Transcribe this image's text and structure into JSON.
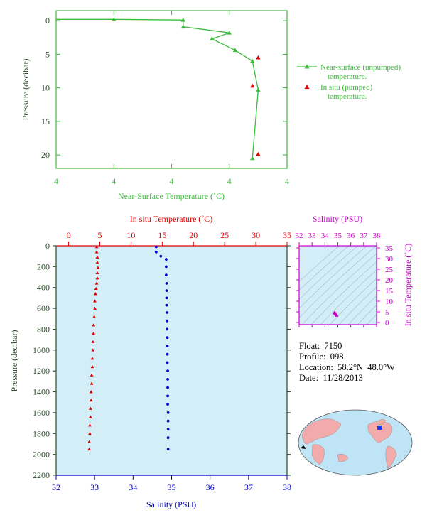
{
  "colors": {
    "green": "#3dbb3d",
    "red": "#e00000",
    "blue": "#0000cc",
    "magenta": "#cc00cc",
    "pale_blue": "#d4eef8",
    "axis_dark": "#2a4a2a"
  },
  "float_info": {
    "float": "Float:  7150",
    "profile": "Profile:  098",
    "location": "Location:  58.2°N  48.0°W",
    "date": "Date:  11/28/2013"
  },
  "chart_data": [
    {
      "type": "line",
      "title": "",
      "xlabel": "Near-Surface Temperature (˚C)",
      "ylabel": "Pressure (decibar)",
      "x_tick_labels": [
        "4",
        "4",
        "4",
        "4",
        "4"
      ],
      "x_ticks": [
        3.6,
        3.8,
        4.0,
        4.2,
        4.4
      ],
      "xlim": [
        3.6,
        4.4
      ],
      "y_ticks": [
        0,
        5,
        10,
        15,
        20
      ],
      "ylim": [
        22,
        -1.5
      ],
      "legend_position": "right",
      "series": [
        {
          "name": "Near-surface (unpumped) temperature.",
          "color": "#3dbb3d",
          "marker": "triangle",
          "x": [
            3.6,
            3.8,
            4.04,
            4.04,
            4.2,
            4.14,
            4.22,
            4.28,
            4.3,
            4.28
          ],
          "y": [
            -0.2,
            -0.2,
            -0.1,
            0.9,
            1.8,
            2.7,
            4.4,
            6.0,
            10.3,
            20.5
          ]
        },
        {
          "name": "In situ (pumped) temperature.",
          "color": "#e00000",
          "marker": "triangle",
          "x": [
            4.3,
            4.28,
            4.3
          ],
          "y": [
            5.5,
            9.7,
            19.9
          ]
        }
      ]
    },
    {
      "type": "scatter",
      "ylabel": "Pressure (decibar)",
      "ylim": [
        2200,
        0
      ],
      "y_ticks": [
        0,
        200,
        400,
        600,
        800,
        1000,
        1200,
        1400,
        1600,
        1800,
        2000,
        2200
      ],
      "top_axis": {
        "label": "In situ Temperature (˚C)",
        "ticks": [
          0,
          5,
          10,
          15,
          20,
          25,
          30,
          35
        ],
        "lim": [
          -2,
          35
        ]
      },
      "bottom_axis": {
        "label": "Salinity (PSU)",
        "ticks": [
          32,
          33,
          34,
          35,
          36,
          37,
          38
        ],
        "lim": [
          32,
          38
        ]
      },
      "series": [
        {
          "name": "In situ Temperature",
          "color": "#e00000",
          "axis": "top",
          "marker": "triangle",
          "x": [
            4.5,
            4.5,
            4.6,
            4.6,
            4.7,
            4.6,
            4.6,
            4.5,
            4.4,
            4.3,
            4.2,
            4.2,
            4.1,
            4.0,
            4.0,
            3.9,
            3.9,
            3.8,
            3.8,
            3.7,
            3.7,
            3.6,
            3.6,
            3.5,
            3.5,
            3.4,
            3.4,
            3.3,
            3.3
          ],
          "y": [
            10,
            60,
            110,
            160,
            210,
            260,
            310,
            360,
            410,
            460,
            530,
            600,
            680,
            760,
            840,
            920,
            1000,
            1080,
            1160,
            1240,
            1320,
            1400,
            1480,
            1560,
            1640,
            1720,
            1800,
            1880,
            1950
          ]
        },
        {
          "name": "Salinity",
          "color": "#0000cc",
          "axis": "bottom",
          "marker": "circle",
          "x": [
            34.6,
            34.6,
            34.72,
            34.86,
            34.86,
            34.86,
            34.87,
            34.87,
            34.87,
            34.87,
            34.88,
            34.88,
            34.88,
            34.89,
            34.89,
            34.89,
            34.89,
            34.9,
            34.9,
            34.9,
            34.9,
            34.9,
            34.91,
            34.91,
            34.91,
            34.91,
            34.91
          ],
          "y": [
            10,
            60,
            100,
            130,
            200,
            280,
            360,
            430,
            500,
            570,
            640,
            720,
            800,
            880,
            960,
            1040,
            1120,
            1200,
            1280,
            1360,
            1440,
            1520,
            1600,
            1680,
            1760,
            1840,
            1950
          ]
        }
      ]
    },
    {
      "type": "scatter",
      "title": "Salinity (PSU)",
      "ylabel": "In situ Temperature (˚C)",
      "x_ticks": [
        32,
        33,
        34,
        35,
        36,
        37,
        38
      ],
      "xlim": [
        32,
        38
      ],
      "y_ticks": [
        0,
        5,
        10,
        15,
        20,
        25,
        30,
        35
      ],
      "ylim": [
        -1,
        36
      ],
      "series": [
        {
          "color": "#cc00cc",
          "marker": "triangle",
          "x": [
            34.72,
            34.82,
            34.88,
            34.9
          ],
          "y": [
            4.5,
            4.2,
            3.7,
            3.4
          ]
        }
      ]
    }
  ]
}
